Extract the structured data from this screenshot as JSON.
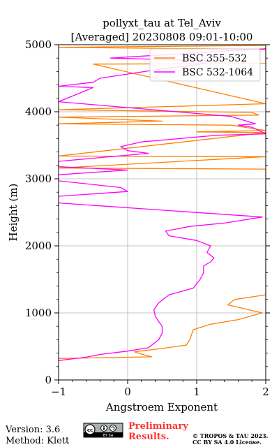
{
  "chart_data": {
    "type": "line",
    "title": [
      "pollyxt_tau at Tel_Aviv",
      "[Averaged] 20230808 09:01-10:00"
    ],
    "xlabel": "Angstroem Exponent",
    "ylabel": "Height (m)",
    "xlim": [
      -1,
      2
    ],
    "ylim": [
      0,
      5000
    ],
    "xticks": [
      -1,
      0,
      1,
      2
    ],
    "yticks": [
      0,
      1000,
      2000,
      3000,
      4000,
      5000
    ],
    "x_tick_labels": [
      "−1",
      "0",
      "1",
      "2"
    ],
    "y_tick_labels": [
      "0",
      "1000",
      "2000",
      "3000",
      "4000",
      "5000"
    ],
    "grid": true,
    "legend_position": "top-right",
    "series": [
      {
        "name": "BSC 355-532",
        "color": "#ff8000",
        "points": [
          [
            -1.0,
            320
          ],
          [
            0.35,
            345
          ],
          [
            0.2,
            385
          ],
          [
            0.1,
            420
          ],
          [
            0.5,
            470
          ],
          [
            0.85,
            520
          ],
          [
            0.9,
            600
          ],
          [
            0.95,
            750
          ],
          [
            1.2,
            830
          ],
          [
            1.6,
            900
          ],
          [
            1.95,
            1000
          ],
          [
            1.45,
            1120
          ],
          [
            1.55,
            1200
          ],
          [
            2.0,
            1270
          ],
          [
            2.0,
            2490
          ],
          [
            2.0,
            3145
          ],
          [
            -1.0,
            3160
          ],
          [
            2.0,
            3330
          ],
          [
            -1.0,
            3340
          ],
          [
            2.0,
            3690
          ],
          [
            1.0,
            3700
          ],
          [
            2.0,
            3720
          ],
          [
            1.5,
            3800
          ],
          [
            -1.0,
            3820
          ],
          [
            0.5,
            3860
          ],
          [
            -1.0,
            3920
          ],
          [
            1.9,
            3950
          ],
          [
            1.8,
            3990
          ],
          [
            -1.0,
            4030
          ],
          [
            2.0,
            4120
          ],
          [
            -0.5,
            4710
          ],
          [
            2.0,
            4720
          ],
          [
            2.0,
            4930
          ],
          [
            -1.0,
            4960
          ],
          [
            2.0,
            4990
          ]
        ]
      },
      {
        "name": "BSC 532-1064",
        "color": "#ff00ff",
        "points": [
          [
            -1.0,
            290
          ],
          [
            -0.6,
            340
          ],
          [
            -0.4,
            380
          ],
          [
            0.0,
            430
          ],
          [
            0.3,
            480
          ],
          [
            0.45,
            600
          ],
          [
            0.5,
            700
          ],
          [
            0.5,
            800
          ],
          [
            0.45,
            870
          ],
          [
            0.4,
            950
          ],
          [
            0.38,
            1050
          ],
          [
            0.45,
            1150
          ],
          [
            0.6,
            1270
          ],
          [
            0.95,
            1370
          ],
          [
            1.05,
            1500
          ],
          [
            1.1,
            1600
          ],
          [
            1.1,
            1700
          ],
          [
            1.2,
            1760
          ],
          [
            1.25,
            1820
          ],
          [
            1.15,
            1900
          ],
          [
            1.2,
            2000
          ],
          [
            1.0,
            2080
          ],
          [
            0.6,
            2150
          ],
          [
            0.55,
            2220
          ],
          [
            0.9,
            2290
          ],
          [
            1.4,
            2340
          ],
          [
            1.95,
            2430
          ],
          [
            -1.0,
            2640
          ],
          [
            -1.0,
            2740
          ],
          [
            0.0,
            2810
          ],
          [
            -0.1,
            2870
          ],
          [
            -1.0,
            2970
          ],
          [
            -1.0,
            3060
          ],
          [
            0.0,
            3130
          ],
          [
            -1.0,
            3180
          ],
          [
            -1.0,
            3260
          ],
          [
            0.3,
            3380
          ],
          [
            0.0,
            3420
          ],
          [
            -0.1,
            3480
          ],
          [
            0.2,
            3550
          ],
          [
            1.3,
            3650
          ],
          [
            2.0,
            3670
          ],
          [
            1.8,
            3770
          ],
          [
            1.6,
            3800
          ],
          [
            1.85,
            3820
          ],
          [
            1.5,
            3930
          ],
          [
            -1.0,
            4150
          ],
          [
            -0.5,
            4360
          ],
          [
            -1.0,
            4380
          ],
          [
            -0.5,
            4440
          ],
          [
            -0.4,
            4500
          ],
          [
            0.5,
            4640
          ],
          [
            1.0,
            4700
          ],
          [
            1.2,
            4760
          ],
          [
            -0.25,
            4800
          ],
          [
            1.0,
            4880
          ],
          [
            2.0,
            4940
          ]
        ]
      }
    ]
  },
  "footer": {
    "version": "Version: 3.6",
    "method": "Method: Klett",
    "cc_badge_text": "BY SA",
    "preliminary": [
      "Preliminary",
      "Results."
    ],
    "copyright": [
      "© TROPOS & TAU 2023.",
      "CC BY SA 4.0 License."
    ]
  }
}
